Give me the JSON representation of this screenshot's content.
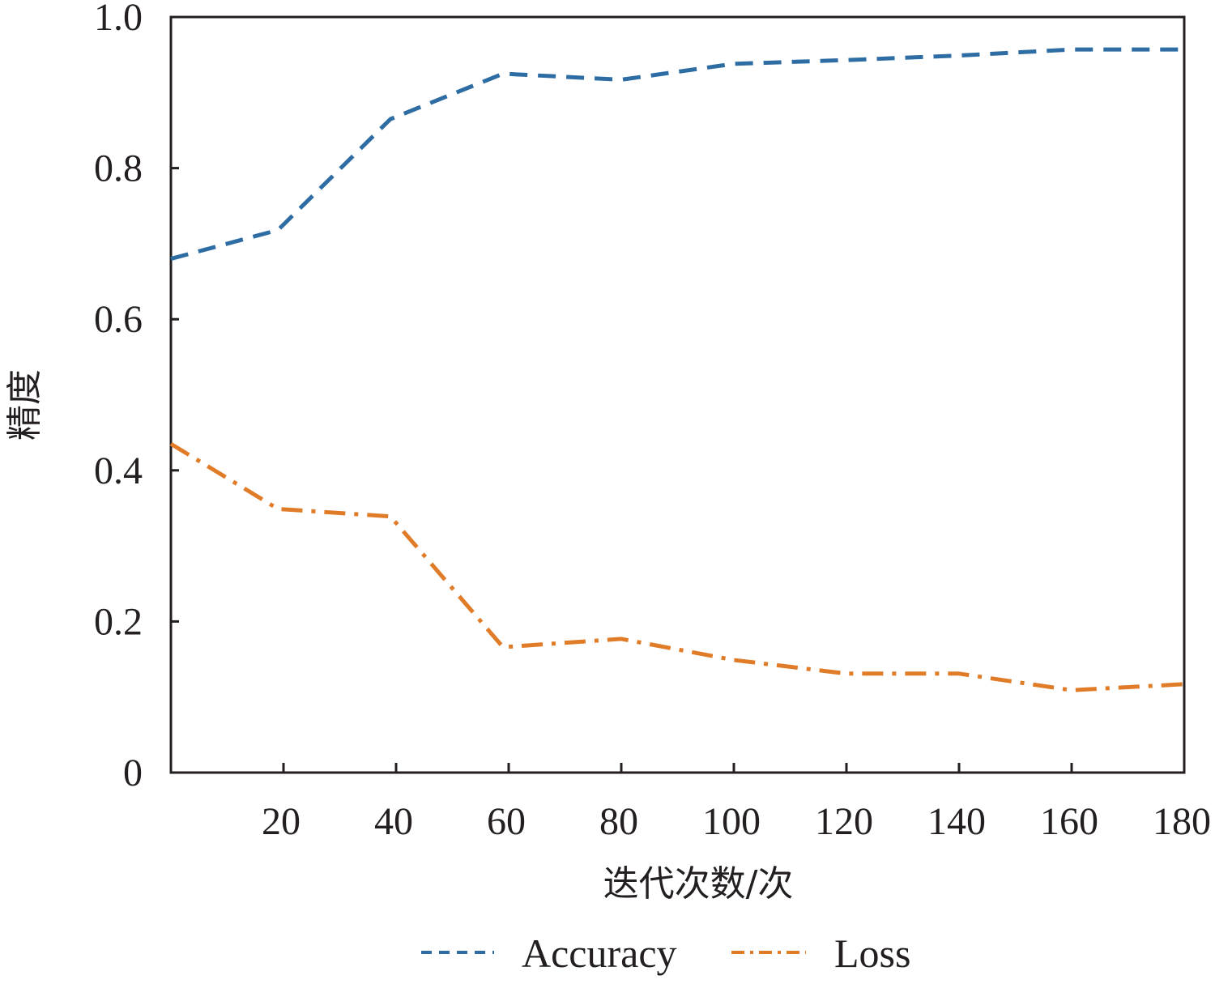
{
  "chart_data": {
    "type": "line",
    "xlabel": "迭代次数/次",
    "ylabel": "精度",
    "xlim": [
      0,
      180
    ],
    "ylim": [
      0,
      1.0
    ],
    "xticks": [
      20,
      40,
      60,
      80,
      100,
      120,
      140,
      160,
      180
    ],
    "xtick_labels": [
      "20",
      "40",
      "60",
      "80",
      "100",
      "120",
      "140",
      "160",
      "180"
    ],
    "yticks": [
      0,
      0.2,
      0.4,
      0.6,
      0.8,
      1.0
    ],
    "ytick_labels": [
      "0",
      "0.2",
      "0.4",
      "0.6",
      "0.8",
      "1.0"
    ],
    "grid": false,
    "legend_position": "bottom",
    "x": [
      0,
      19,
      39,
      59,
      80,
      100,
      120,
      140,
      160,
      180
    ],
    "series": [
      {
        "name": "Accuracy",
        "color": "#2e6da4",
        "line_style": "dashed",
        "values": [
          0.68,
          0.718,
          0.865,
          0.925,
          0.917,
          0.938,
          0.943,
          0.949,
          0.957,
          0.957
        ]
      },
      {
        "name": "Loss",
        "color": "#e07b28",
        "line_style": "dash-dot",
        "values": [
          0.435,
          0.349,
          0.339,
          0.166,
          0.177,
          0.149,
          0.131,
          0.131,
          0.109,
          0.117
        ]
      }
    ]
  }
}
